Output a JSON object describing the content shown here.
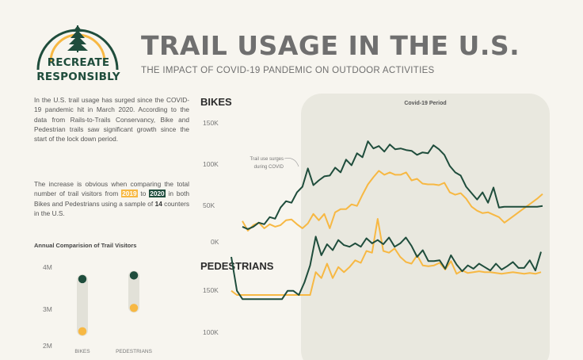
{
  "logo": {
    "line1": "RECREATE",
    "line2": "RESPONSIBLY",
    "tree_icon": "pine-tree-icon"
  },
  "header": {
    "title": "TRAIL USAGE IN THE U.S.",
    "subtitle": "THE IMPACT OF COVID-19 PANDEMIC ON OUTDOOR ACTIVITIES"
  },
  "intro": {
    "p1": "In the U.S. trail usage has surged since the COVID-19 pandemic hit in March 2020. According to the data from Rails-to-Trails Conservancy, Bike and Pedestrian trails saw significant growth since the start of the lock down period.",
    "p2_a": "The increase is obvious when comparing the total number of trail visitors from ",
    "year_a": "2019",
    "p2_b": " to ",
    "year_b": "2020",
    "p2_c": " in both Bikes and Pedestrians using a sample of ",
    "counters": "14",
    "p2_d": " counters in the U.S."
  },
  "colors": {
    "y2019": "#f7b843",
    "y2020": "#1f4d3c",
    "covid_band": "#e9e8df",
    "text": "#555555",
    "background": "#f7f5ef"
  },
  "chart_data": [
    {
      "type": "scatter",
      "title": "Annual Comparision of Trail Visitors",
      "categories": [
        "BIKES",
        "PEDESTRIANS"
      ],
      "yticks": [
        "4M",
        "3M",
        "2M"
      ],
      "ylim": [
        2.0,
        4.2
      ],
      "series": [
        {
          "name": "2019",
          "color": "#f7b843",
          "values": [
            2.4,
            3.05
          ]
        },
        {
          "name": "2020",
          "color": "#1f4d3c",
          "values": [
            3.85,
            3.95
          ]
        }
      ]
    },
    {
      "type": "line",
      "title": "BIKES",
      "band_label": "Covid-19 Period",
      "annotation": "Trail use surges during COVID",
      "yticks": [
        "150K",
        "100K",
        "50K",
        "0K"
      ],
      "ylim": [
        0,
        150000
      ],
      "n_weeks": 56,
      "covid_start_week": 13,
      "series": [
        {
          "name": "2020",
          "color": "#1f4d3c",
          "values": [
            20000,
            17000,
            20000,
            25000,
            23000,
            32000,
            30000,
            44000,
            52000,
            50000,
            63000,
            70000,
            93000,
            72000,
            78000,
            83000,
            84000,
            94000,
            88000,
            104000,
            97000,
            112000,
            107000,
            127000,
            118000,
            121000,
            114000,
            123000,
            117000,
            118000,
            116000,
            115000,
            110000,
            113000,
            112000,
            122000,
            117000,
            110000,
            96000,
            88000,
            84000,
            70000,
            62000,
            54000,
            63000,
            50000,
            69000,
            44000,
            45000,
            45000,
            45000,
            45000,
            45000,
            45000,
            45000,
            46000
          ]
        },
        {
          "name": "2019",
          "color": "#f7b843",
          "values": [
            27000,
            15000,
            22000,
            25000,
            18000,
            23000,
            20000,
            22000,
            28000,
            29000,
            23000,
            18000,
            24000,
            36000,
            28000,
            36000,
            18000,
            38000,
            42000,
            42000,
            48000,
            46000,
            60000,
            73000,
            82000,
            90000,
            85000,
            88000,
            85000,
            85000,
            88000,
            78000,
            80000,
            74000,
            73000,
            73000,
            72000,
            75000,
            63000,
            60000,
            62000,
            55000,
            45000,
            40000,
            37000,
            38000,
            35000,
            32000,
            25000,
            30000,
            35000,
            40000,
            45000,
            50000,
            55000,
            61000
          ]
        }
      ]
    },
    {
      "type": "line",
      "title": "PEDESTRIANS",
      "yticks": [
        "150K",
        "100K"
      ],
      "ylim": [
        0,
        150000
      ],
      "n_weeks": 56,
      "series": [
        {
          "name": "2020",
          "color": "#1f4d3c",
          "values": [
            90000,
            50000,
            40000,
            40000,
            40000,
            40000,
            40000,
            40000,
            40000,
            40000,
            50000,
            50000,
            45000,
            60000,
            80000,
            114000,
            92000,
            105000,
            98000,
            110000,
            104000,
            102000,
            106000,
            102000,
            112000,
            106000,
            110000,
            105000,
            113000,
            102000,
            106000,
            113000,
            103000,
            90000,
            98000,
            85000,
            85000,
            86000,
            76000,
            92000,
            81000,
            73000,
            80000,
            76000,
            82000,
            78000,
            74000,
            82000,
            75000,
            79000,
            84000,
            77000,
            77000,
            86000,
            74000,
            96000
          ]
        },
        {
          "name": "2019",
          "color": "#f7b843",
          "values": [
            50000,
            45000,
            45000,
            45000,
            45000,
            45000,
            45000,
            45000,
            45000,
            45000,
            45000,
            45000,
            45000,
            45000,
            45000,
            72000,
            65000,
            82000,
            65000,
            78000,
            72000,
            78000,
            86000,
            83000,
            97000,
            95000,
            135000,
            97000,
            95000,
            100000,
            90000,
            84000,
            82000,
            92000,
            80000,
            79000,
            80000,
            83000,
            75000,
            85000,
            70000,
            74000,
            71000,
            72000,
            73000,
            72000,
            72000,
            71000,
            70000,
            71000,
            72000,
            71000,
            70000,
            71000,
            70000,
            72000
          ]
        }
      ]
    }
  ]
}
